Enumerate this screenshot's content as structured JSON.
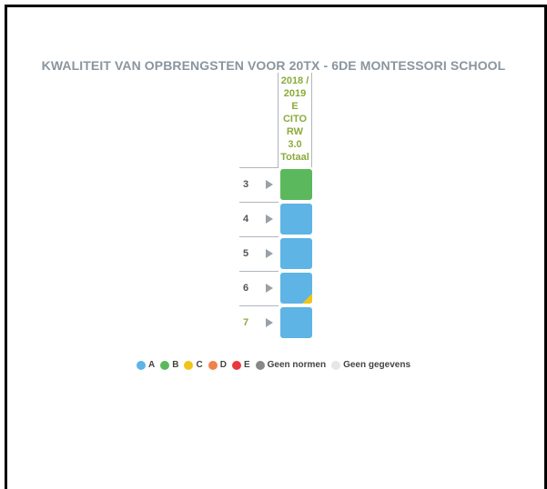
{
  "title": "KWALITEIT VAN OPBRENGSTEN VOOR 20TX - 6DE MONTESSORI SCHOOL",
  "column_header": [
    "2018 /",
    "2019",
    "E",
    "CITO",
    "RW",
    "3.0",
    "Totaal"
  ],
  "colors": {
    "A": "#5db4e5",
    "B": "#5cb85c",
    "C": "#f0c419",
    "D": "#f0834a",
    "E": "#e8383d",
    "Geen normen": "#888888",
    "Geen gegevens": "#e6e6e6"
  },
  "chart_data": {
    "type": "table",
    "title": "KWALITEIT VAN OPBRENGSTEN VOOR 20TX - 6DE MONTESSORI SCHOOL",
    "column": "2018 / 2019 E CITO RW 3.0 Totaal",
    "rows": [
      {
        "label": "3",
        "grade": "B",
        "highlighted": false,
        "corner": null
      },
      {
        "label": "4",
        "grade": "A",
        "highlighted": false,
        "corner": null
      },
      {
        "label": "5",
        "grade": "A",
        "highlighted": false,
        "corner": null
      },
      {
        "label": "6",
        "grade": "A",
        "highlighted": false,
        "corner": "C"
      },
      {
        "label": "7",
        "grade": "A",
        "highlighted": true,
        "corner": null
      }
    ],
    "legend": [
      "A",
      "B",
      "C",
      "D",
      "E",
      "Geen normen",
      "Geen gegevens"
    ],
    "legend_position": "bottom"
  }
}
